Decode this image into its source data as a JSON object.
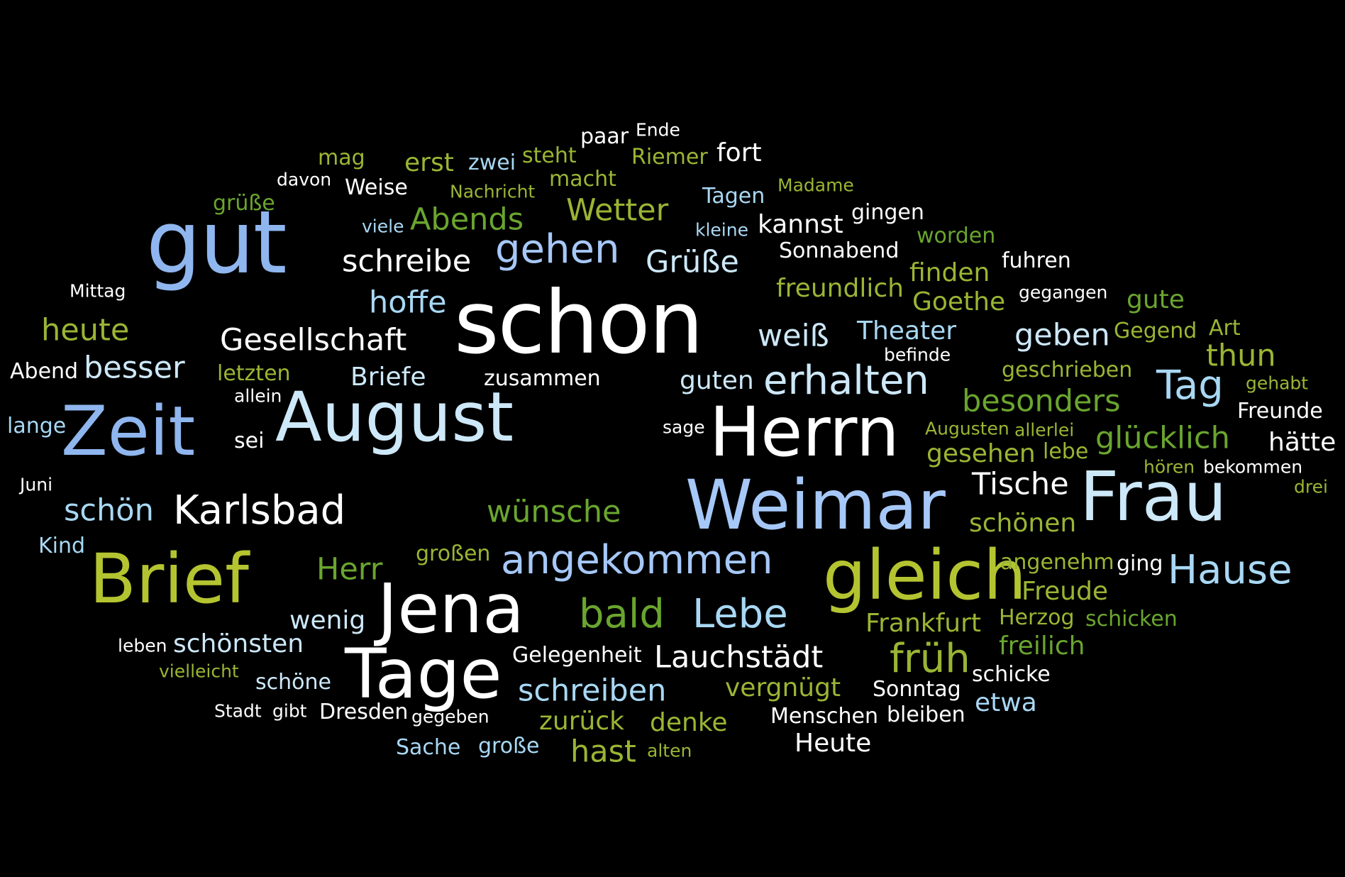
{
  "colors": {
    "background": "#000000",
    "white": "#ffffff",
    "light_blue": "#a8d8f4",
    "blue": "#a6c8f8",
    "mid_blue": "#8fb6ef",
    "pale_blue": "#cde8f8",
    "lime_green": "#9ab534",
    "dark_green": "#6aa52f",
    "olive": "#b4c431"
  },
  "words": [
    {
      "text": "Ende",
      "color": "white"
    },
    {
      "text": "paar",
      "color": "white"
    },
    {
      "text": "fort",
      "color": "white"
    },
    {
      "text": "mag",
      "color": "lime_green"
    },
    {
      "text": "erst",
      "color": "lime_green"
    },
    {
      "text": "zwei",
      "color": "light_blue"
    },
    {
      "text": "steht",
      "color": "lime_green"
    },
    {
      "text": "Riemer",
      "color": "lime_green"
    },
    {
      "text": "davon",
      "color": "white"
    },
    {
      "text": "Weise",
      "color": "white"
    },
    {
      "text": "Nachricht",
      "color": "lime_green"
    },
    {
      "text": "macht",
      "color": "lime_green"
    },
    {
      "text": "Madame",
      "color": "lime_green"
    },
    {
      "text": "grüße",
      "color": "dark_green"
    },
    {
      "text": "Tagen",
      "color": "light_blue"
    },
    {
      "text": "Wetter",
      "color": "lime_green"
    },
    {
      "text": "gingen",
      "color": "white"
    },
    {
      "text": "viele",
      "color": "light_blue"
    },
    {
      "text": "Abends",
      "color": "dark_green"
    },
    {
      "text": "kleine",
      "color": "light_blue"
    },
    {
      "text": "kannst",
      "color": "white"
    },
    {
      "text": "worden",
      "color": "dark_green"
    },
    {
      "text": "gut",
      "color": "mid_blue"
    },
    {
      "text": "gehen",
      "color": "blue"
    },
    {
      "text": "Sonnabend",
      "color": "white"
    },
    {
      "text": "fuhren",
      "color": "white"
    },
    {
      "text": "schreibe",
      "color": "white"
    },
    {
      "text": "Grüße",
      "color": "pale_blue"
    },
    {
      "text": "finden",
      "color": "lime_green"
    },
    {
      "text": "Mittag",
      "color": "white"
    },
    {
      "text": "freundlich",
      "color": "lime_green"
    },
    {
      "text": "gegangen",
      "color": "white"
    },
    {
      "text": "hoffe",
      "color": "light_blue"
    },
    {
      "text": "Goethe",
      "color": "lime_green"
    },
    {
      "text": "gute",
      "color": "dark_green"
    },
    {
      "text": "schon",
      "color": "white"
    },
    {
      "text": "heute",
      "color": "lime_green"
    },
    {
      "text": "Gesellschaft",
      "color": "white"
    },
    {
      "text": "weiß",
      "color": "pale_blue"
    },
    {
      "text": "Theater",
      "color": "light_blue"
    },
    {
      "text": "geben",
      "color": "pale_blue"
    },
    {
      "text": "Gegend",
      "color": "lime_green"
    },
    {
      "text": "Art",
      "color": "lime_green"
    },
    {
      "text": "befinde",
      "color": "white"
    },
    {
      "text": "thun",
      "color": "lime_green"
    },
    {
      "text": "besser",
      "color": "pale_blue"
    },
    {
      "text": "letzten",
      "color": "lime_green"
    },
    {
      "text": "Briefe",
      "color": "pale_blue"
    },
    {
      "text": "zusammen",
      "color": "white"
    },
    {
      "text": "guten",
      "color": "pale_blue"
    },
    {
      "text": "erhalten",
      "color": "pale_blue"
    },
    {
      "text": "geschrieben",
      "color": "lime_green"
    },
    {
      "text": "Tag",
      "color": "light_blue"
    },
    {
      "text": "gehabt",
      "color": "lime_green"
    },
    {
      "text": "Abend",
      "color": "white"
    },
    {
      "text": "allein",
      "color": "white"
    },
    {
      "text": "besonders",
      "color": "dark_green"
    },
    {
      "text": "Freunde",
      "color": "white"
    },
    {
      "text": "lange",
      "color": "light_blue"
    },
    {
      "text": "Zeit",
      "color": "mid_blue"
    },
    {
      "text": "August",
      "color": "pale_blue"
    },
    {
      "text": "sage",
      "color": "white"
    },
    {
      "text": "Herrn",
      "color": "white"
    },
    {
      "text": "Augusten",
      "color": "lime_green"
    },
    {
      "text": "allerlei",
      "color": "lime_green"
    },
    {
      "text": "glücklich",
      "color": "dark_green"
    },
    {
      "text": "sei",
      "color": "white"
    },
    {
      "text": "gesehen",
      "color": "lime_green"
    },
    {
      "text": "lebe",
      "color": "lime_green"
    },
    {
      "text": "hätte",
      "color": "white"
    },
    {
      "text": "Juni",
      "color": "white"
    },
    {
      "text": "Tische",
      "color": "white"
    },
    {
      "text": "hören",
      "color": "lime_green"
    },
    {
      "text": "bekommen",
      "color": "white"
    },
    {
      "text": "drei",
      "color": "lime_green"
    },
    {
      "text": "schön",
      "color": "light_blue"
    },
    {
      "text": "Karlsbad",
      "color": "white"
    },
    {
      "text": "wünsche",
      "color": "dark_green"
    },
    {
      "text": "Weimar",
      "color": "blue"
    },
    {
      "text": "Frau",
      "color": "pale_blue"
    },
    {
      "text": "schönen",
      "color": "lime_green"
    },
    {
      "text": "Kind",
      "color": "light_blue"
    },
    {
      "text": "Brief",
      "color": "olive"
    },
    {
      "text": "großen",
      "color": "lime_green"
    },
    {
      "text": "angekommen",
      "color": "blue"
    },
    {
      "text": "Herr",
      "color": "dark_green"
    },
    {
      "text": "gleich",
      "color": "olive"
    },
    {
      "text": "angenehm",
      "color": "lime_green"
    },
    {
      "text": "ging",
      "color": "white"
    },
    {
      "text": "Hause",
      "color": "light_blue"
    },
    {
      "text": "Jena",
      "color": "white"
    },
    {
      "text": "Freude",
      "color": "lime_green"
    },
    {
      "text": "bald",
      "color": "dark_green"
    },
    {
      "text": "Lebe",
      "color": "light_blue"
    },
    {
      "text": "wenig",
      "color": "pale_blue"
    },
    {
      "text": "Frankfurt",
      "color": "lime_green"
    },
    {
      "text": "Herzog",
      "color": "lime_green"
    },
    {
      "text": "schicken",
      "color": "dark_green"
    },
    {
      "text": "leben",
      "color": "white"
    },
    {
      "text": "schönsten",
      "color": "pale_blue"
    },
    {
      "text": "freilich",
      "color": "dark_green"
    },
    {
      "text": "Tage",
      "color": "white"
    },
    {
      "text": "Lauchstädt",
      "color": "white"
    },
    {
      "text": "früh",
      "color": "lime_green"
    },
    {
      "text": "vielleicht",
      "color": "lime_green"
    },
    {
      "text": "Gelegenheit",
      "color": "white"
    },
    {
      "text": "schicke",
      "color": "white"
    },
    {
      "text": "schöne",
      "color": "pale_blue"
    },
    {
      "text": "schreiben",
      "color": "light_blue"
    },
    {
      "text": "vergnügt",
      "color": "lime_green"
    },
    {
      "text": "Sonntag",
      "color": "white"
    },
    {
      "text": "etwa",
      "color": "light_blue"
    },
    {
      "text": "Stadt",
      "color": "white"
    },
    {
      "text": "gibt",
      "color": "white"
    },
    {
      "text": "Dresden",
      "color": "white"
    },
    {
      "text": "gegeben",
      "color": "white"
    },
    {
      "text": "zurück",
      "color": "lime_green"
    },
    {
      "text": "denke",
      "color": "lime_green"
    },
    {
      "text": "Menschen",
      "color": "white"
    },
    {
      "text": "bleiben",
      "color": "white"
    },
    {
      "text": "Heute",
      "color": "white"
    },
    {
      "text": "Sache",
      "color": "light_blue"
    },
    {
      "text": "große",
      "color": "light_blue"
    },
    {
      "text": "hast",
      "color": "lime_green"
    },
    {
      "text": "alten",
      "color": "lime_green"
    }
  ]
}
